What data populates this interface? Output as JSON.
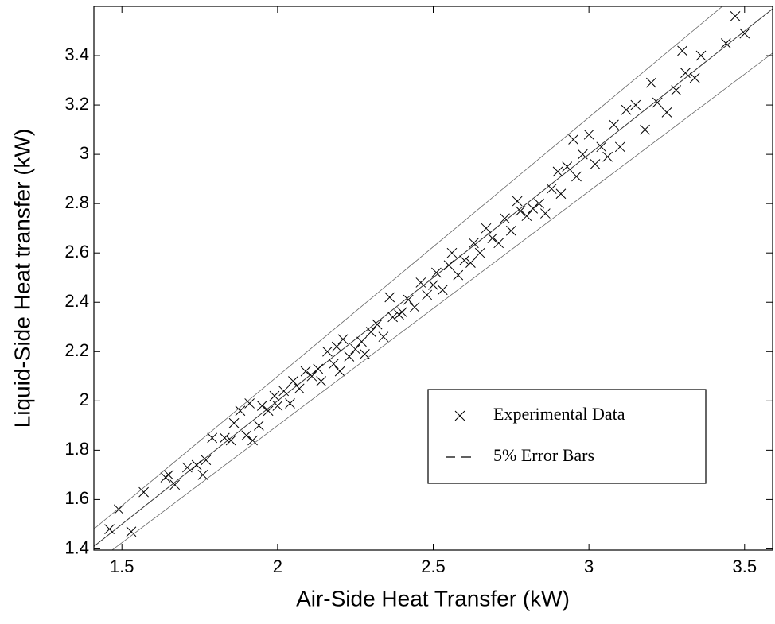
{
  "chart_data": {
    "type": "scatter",
    "xlabel": "Air-Side Heat Transfer (kW)",
    "ylabel": "Liquid-Side Heat transfer (kW)",
    "xlim": [
      1.41,
      3.59
    ],
    "ylim": [
      1.395,
      3.6
    ],
    "xticks": [
      1.5,
      2,
      2.5,
      3,
      3.5
    ],
    "yticks": [
      1.4,
      1.6,
      1.8,
      2,
      2.2,
      2.4,
      2.6,
      2.8,
      3,
      3.2,
      3.4
    ],
    "legend": "lower right",
    "series": [
      {
        "name": "Experimental Data",
        "marker": "x",
        "color": "#000000",
        "x": [
          1.46,
          1.49,
          1.53,
          1.57,
          1.64,
          1.65,
          1.67,
          1.71,
          1.74,
          1.76,
          1.77,
          1.79,
          1.83,
          1.85,
          1.86,
          1.88,
          1.9,
          1.91,
          1.92,
          1.94,
          1.95,
          1.97,
          1.99,
          2.0,
          2.02,
          2.04,
          2.05,
          2.07,
          2.09,
          2.11,
          2.13,
          2.14,
          2.16,
          2.18,
          2.19,
          2.2,
          2.21,
          2.23,
          2.25,
          2.27,
          2.28,
          2.3,
          2.32,
          2.34,
          2.36,
          2.37,
          2.39,
          2.4,
          2.42,
          2.44,
          2.46,
          2.48,
          2.5,
          2.51,
          2.53,
          2.55,
          2.56,
          2.58,
          2.6,
          2.62,
          2.63,
          2.65,
          2.67,
          2.69,
          2.71,
          2.73,
          2.75,
          2.77,
          2.78,
          2.8,
          2.82,
          2.84,
          2.86,
          2.88,
          2.9,
          2.91,
          2.93,
          2.95,
          2.96,
          2.98,
          3.0,
          3.02,
          3.04,
          3.06,
          3.08,
          3.1,
          3.12,
          3.15,
          3.18,
          3.2,
          3.22,
          3.25,
          3.28,
          3.3,
          3.31,
          3.34,
          3.36,
          3.44,
          3.47,
          3.5
        ],
        "values": [
          1.48,
          1.56,
          1.47,
          1.63,
          1.69,
          1.7,
          1.66,
          1.73,
          1.74,
          1.7,
          1.76,
          1.85,
          1.85,
          1.84,
          1.91,
          1.96,
          1.86,
          1.99,
          1.84,
          1.9,
          1.98,
          1.96,
          2.02,
          1.98,
          2.04,
          1.99,
          2.08,
          2.05,
          2.12,
          2.1,
          2.13,
          2.08,
          2.2,
          2.15,
          2.22,
          2.12,
          2.25,
          2.18,
          2.21,
          2.24,
          2.19,
          2.28,
          2.31,
          2.26,
          2.42,
          2.34,
          2.35,
          2.36,
          2.41,
          2.38,
          2.48,
          2.43,
          2.47,
          2.52,
          2.45,
          2.55,
          2.6,
          2.51,
          2.57,
          2.56,
          2.64,
          2.6,
          2.7,
          2.66,
          2.64,
          2.74,
          2.69,
          2.81,
          2.77,
          2.75,
          2.78,
          2.8,
          2.76,
          2.86,
          2.93,
          2.84,
          2.95,
          3.06,
          2.91,
          3.0,
          3.08,
          2.96,
          3.03,
          2.99,
          3.12,
          3.03,
          3.18,
          3.2,
          3.1,
          3.29,
          3.21,
          3.17,
          3.26,
          3.42,
          3.33,
          3.31,
          3.4,
          3.45,
          3.56,
          3.49
        ]
      },
      {
        "name": "5% Error Bars",
        "color": "#666666",
        "x": [
          1.41,
          3.59
        ],
        "upper": [
          1.4805,
          3.7695
        ],
        "lower": [
          1.3395,
          3.4105
        ]
      }
    ],
    "reference_line": {
      "x": [
        1.41,
        3.59
      ],
      "values": [
        1.41,
        3.59
      ],
      "color": "#333333"
    }
  }
}
